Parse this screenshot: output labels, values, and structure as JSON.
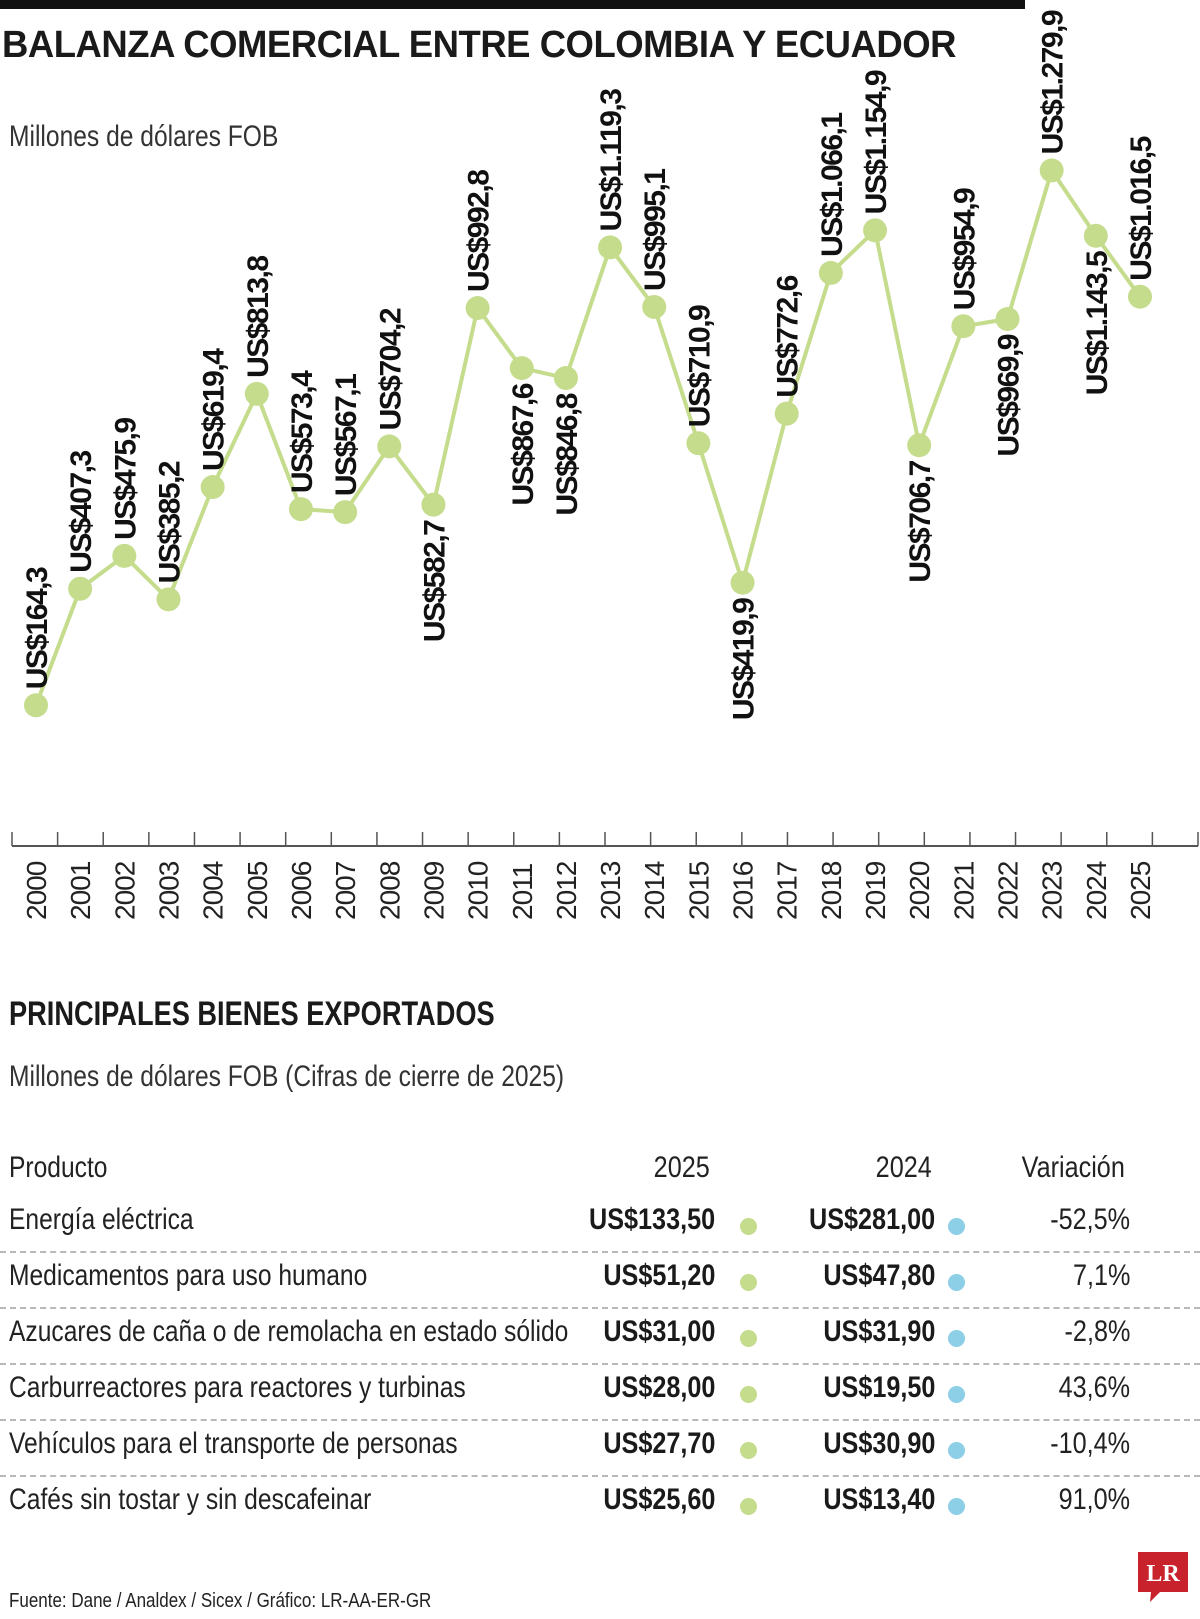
{
  "title": "BALANZA COMERCIAL ENTRE COLOMBIA Y ECUADOR",
  "unit_label": "Millones de dólares FOB",
  "chart_data": {
    "type": "line",
    "title": "BALANZA COMERCIAL ENTRE COLOMBIA Y ECUADOR",
    "ylabel": "Millones de dólares FOB",
    "x": [
      "2000",
      "2001",
      "2002",
      "2003",
      "2004",
      "2005",
      "2006",
      "2007",
      "2008",
      "2009",
      "2010",
      "2011",
      "2012",
      "2013",
      "2014",
      "2015",
      "2016",
      "2017",
      "2018",
      "2019",
      "2020",
      "2021",
      "2022",
      "2023",
      "2024",
      "2025"
    ],
    "values": [
      164.3,
      407.3,
      475.9,
      385.2,
      619.4,
      813.8,
      573.4,
      567.1,
      704.2,
      582.7,
      992.8,
      867.6,
      846.8,
      1119.3,
      995.1,
      710.9,
      419.9,
      772.6,
      1066.1,
      1154.9,
      706.7,
      954.9,
      969.9,
      1279.9,
      1143.5,
      1016.5
    ],
    "labels": [
      "US$164,3",
      "US$407,3",
      "US$475,9",
      "US$385,2",
      "US$619,4",
      "US$813,8",
      "US$573,4",
      "US$567,1",
      "US$704,2",
      "US$582,7",
      "US$992,8",
      "US$867,6",
      "US$846,8",
      "US$1.119,3",
      "US$995,1",
      "US$710,9",
      "US$419,9",
      "US$772,6",
      "US$1.066,1",
      "US$1.154,9",
      "US$706,7",
      "US$954,9",
      "US$969,9",
      "US$1.279,9",
      "US$1.143,5",
      "US$1.016,5"
    ],
    "label_side": [
      "above",
      "above",
      "above",
      "above",
      "above",
      "above",
      "above",
      "above",
      "above",
      "below",
      "above",
      "below",
      "below",
      "above",
      "above",
      "above",
      "below",
      "above",
      "above",
      "above",
      "below",
      "above",
      "below",
      "above",
      "below",
      "above"
    ],
    "line_color": "#c5dc8d",
    "grid": false
  },
  "exports": {
    "title": "PRINCIPALES BIENES EXPORTADOS",
    "subtitle": "Millones de dólares FOB (Cifras de cierre de 2025)",
    "headers": {
      "product": "Producto",
      "y2025": "2025",
      "y2024": "2024",
      "variation": "Variación"
    },
    "rows": [
      {
        "product": "Energía eléctrica",
        "v2025": "US$133,50",
        "v2024": "US$281,00",
        "variation": "-52,5%"
      },
      {
        "product": "Medicamentos para uso humano",
        "v2025": "US$51,20",
        "v2024": "US$47,80",
        "variation": "7,1%"
      },
      {
        "product": "Azucares de caña o de remolacha en estado sólido",
        "v2025": "US$31,00",
        "v2024": "US$31,90",
        "variation": "-2,8%"
      },
      {
        "product": "Carburreactores para reactores y turbinas",
        "v2025": "US$28,00",
        "v2024": "US$19,50",
        "variation": "43,6%"
      },
      {
        "product": "Vehículos para el transporte de personas",
        "v2025": "US$27,70",
        "v2024": "US$30,90",
        "variation": "-10,4%"
      },
      {
        "product": "Cafés sin tostar y sin descafeinar",
        "v2025": "US$25,60",
        "v2024": "US$13,40",
        "variation": "91,0%"
      }
    ],
    "color_2025": "#c5dc8d",
    "color_2024": "#8ccfe6"
  },
  "source": "Fuente: Dane / Analdex / Sicex / Gráfico: LR-AA-ER-GR",
  "logo_text": "LR",
  "logo_color": "#c8232c"
}
